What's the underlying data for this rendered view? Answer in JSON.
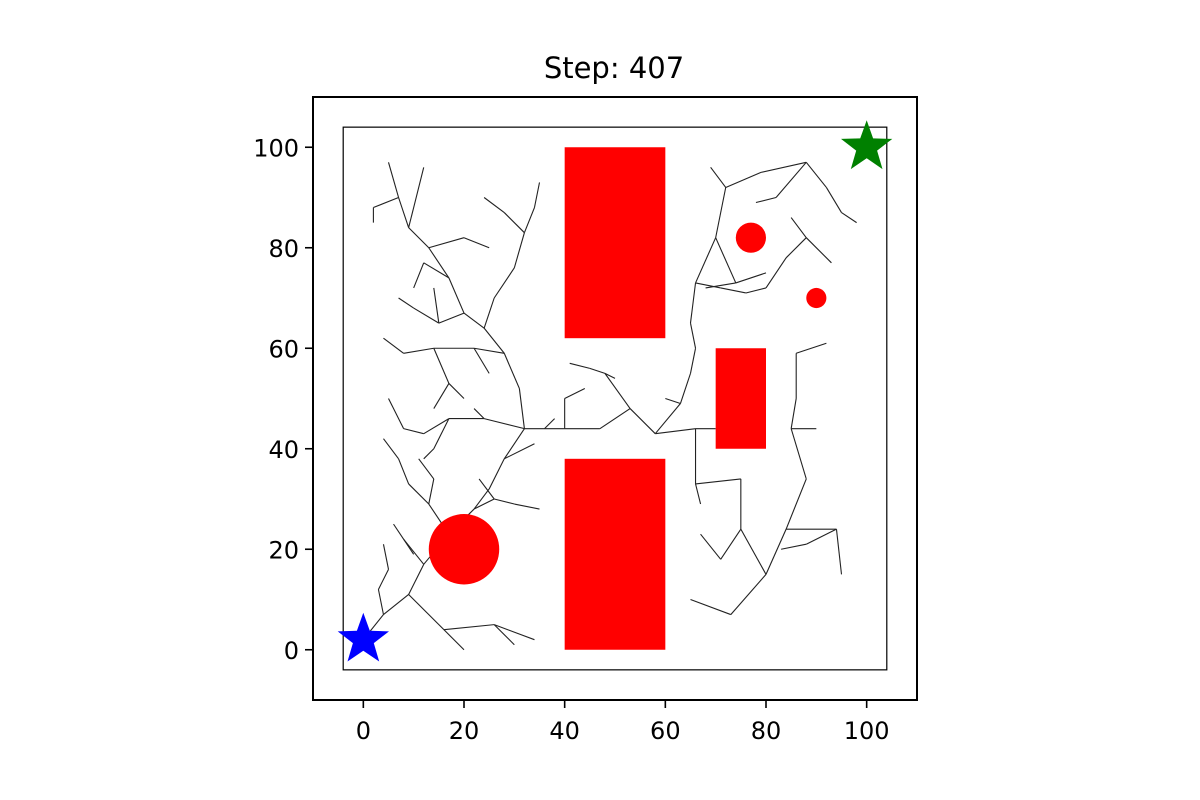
{
  "chart_data": {
    "type": "scatter",
    "title": "Step: 407",
    "xlim": [
      -10,
      110
    ],
    "ylim": [
      -10,
      110
    ],
    "xticks": [
      0,
      20,
      40,
      60,
      80,
      100
    ],
    "yticks": [
      0,
      20,
      40,
      60,
      80,
      100
    ],
    "boundary": {
      "x": [
        -4,
        104
      ],
      "y": [
        -4,
        104
      ]
    },
    "start": {
      "x": 0,
      "y": 2,
      "color": "#0000ff"
    },
    "goal": {
      "x": 100,
      "y": 100,
      "color": "#008000"
    },
    "obstacle_color": "#ff0000",
    "obstacles_rect": [
      {
        "x": 40,
        "y": 0,
        "w": 20,
        "h": 38
      },
      {
        "x": 40,
        "y": 62,
        "w": 20,
        "h": 38
      },
      {
        "x": 70,
        "y": 40,
        "w": 10,
        "h": 20
      }
    ],
    "obstacles_circle": [
      {
        "cx": 20,
        "cy": 20,
        "r": 7
      },
      {
        "cx": 77,
        "cy": 82,
        "r": 3
      },
      {
        "cx": 90,
        "cy": 70,
        "r": 2
      }
    ],
    "tree_color": "#222222",
    "tree_edges": [
      [
        [
          0,
          2
        ],
        [
          4,
          7
        ]
      ],
      [
        [
          4,
          7
        ],
        [
          9,
          11
        ]
      ],
      [
        [
          9,
          11
        ],
        [
          12,
          17
        ]
      ],
      [
        [
          12,
          17
        ],
        [
          17,
          23
        ]
      ],
      [
        [
          17,
          23
        ],
        [
          22,
          28
        ]
      ],
      [
        [
          22,
          28
        ],
        [
          25,
          32
        ]
      ],
      [
        [
          25,
          32
        ],
        [
          28,
          38
        ]
      ],
      [
        [
          28,
          38
        ],
        [
          32,
          44
        ]
      ],
      [
        [
          9,
          11
        ],
        [
          16,
          4
        ]
      ],
      [
        [
          16,
          4
        ],
        [
          26,
          5
        ]
      ],
      [
        [
          26,
          5
        ],
        [
          34,
          2
        ]
      ],
      [
        [
          16,
          4
        ],
        [
          20,
          0
        ]
      ],
      [
        [
          26,
          5
        ],
        [
          30,
          1
        ]
      ],
      [
        [
          4,
          7
        ],
        [
          3,
          12
        ]
      ],
      [
        [
          3,
          12
        ],
        [
          5,
          16
        ]
      ],
      [
        [
          5,
          16
        ],
        [
          4,
          21
        ]
      ],
      [
        [
          12,
          17
        ],
        [
          8,
          22
        ]
      ],
      [
        [
          8,
          22
        ],
        [
          6,
          25
        ]
      ],
      [
        [
          8,
          22
        ],
        [
          10,
          19
        ]
      ],
      [
        [
          17,
          23
        ],
        [
          13,
          29
        ]
      ],
      [
        [
          13,
          29
        ],
        [
          9,
          33
        ]
      ],
      [
        [
          9,
          33
        ],
        [
          7,
          38
        ]
      ],
      [
        [
          7,
          38
        ],
        [
          4,
          42
        ]
      ],
      [
        [
          13,
          29
        ],
        [
          14,
          34
        ]
      ],
      [
        [
          14,
          34
        ],
        [
          11,
          38
        ]
      ],
      [
        [
          22,
          28
        ],
        [
          26,
          30
        ]
      ],
      [
        [
          26,
          30
        ],
        [
          30,
          29
        ]
      ],
      [
        [
          30,
          29
        ],
        [
          35,
          28
        ]
      ],
      [
        [
          26,
          30
        ],
        [
          23,
          34
        ]
      ],
      [
        [
          28,
          38
        ],
        [
          34,
          41
        ]
      ],
      [
        [
          32,
          44
        ],
        [
          24,
          46
        ]
      ],
      [
        [
          24,
          46
        ],
        [
          17,
          46
        ]
      ],
      [
        [
          17,
          46
        ],
        [
          12,
          43
        ]
      ],
      [
        [
          12,
          43
        ],
        [
          8,
          44
        ]
      ],
      [
        [
          8,
          44
        ],
        [
          5,
          50
        ]
      ],
      [
        [
          17,
          46
        ],
        [
          14,
          40
        ]
      ],
      [
        [
          14,
          40
        ],
        [
          12,
          38
        ]
      ],
      [
        [
          24,
          46
        ],
        [
          22,
          48
        ]
      ],
      [
        [
          32,
          44
        ],
        [
          31,
          52
        ]
      ],
      [
        [
          31,
          52
        ],
        [
          28,
          59
        ]
      ],
      [
        [
          28,
          59
        ],
        [
          24,
          64
        ]
      ],
      [
        [
          24,
          64
        ],
        [
          20,
          67
        ]
      ],
      [
        [
          20,
          67
        ],
        [
          17,
          74
        ]
      ],
      [
        [
          17,
          74
        ],
        [
          13,
          80
        ]
      ],
      [
        [
          13,
          80
        ],
        [
          9,
          84
        ]
      ],
      [
        [
          9,
          84
        ],
        [
          7,
          90
        ]
      ],
      [
        [
          7,
          90
        ],
        [
          5,
          97
        ]
      ],
      [
        [
          9,
          84
        ],
        [
          12,
          96
        ]
      ],
      [
        [
          13,
          80
        ],
        [
          20,
          82
        ]
      ],
      [
        [
          20,
          82
        ],
        [
          25,
          80
        ]
      ],
      [
        [
          28,
          59
        ],
        [
          22,
          60
        ]
      ],
      [
        [
          22,
          60
        ],
        [
          14,
          60
        ]
      ],
      [
        [
          14,
          60
        ],
        [
          8,
          59
        ]
      ],
      [
        [
          8,
          59
        ],
        [
          4,
          62
        ]
      ],
      [
        [
          14,
          60
        ],
        [
          17,
          53
        ]
      ],
      [
        [
          17,
          53
        ],
        [
          20,
          50
        ]
      ],
      [
        [
          17,
          53
        ],
        [
          14,
          48
        ]
      ],
      [
        [
          22,
          60
        ],
        [
          25,
          55
        ]
      ],
      [
        [
          24,
          64
        ],
        [
          26,
          70
        ]
      ],
      [
        [
          26,
          70
        ],
        [
          30,
          76
        ]
      ],
      [
        [
          30,
          76
        ],
        [
          32,
          83
        ]
      ],
      [
        [
          32,
          83
        ],
        [
          34,
          88
        ]
      ],
      [
        [
          34,
          88
        ],
        [
          35,
          93
        ]
      ],
      [
        [
          32,
          83
        ],
        [
          28,
          87
        ]
      ],
      [
        [
          28,
          87
        ],
        [
          24,
          90
        ]
      ],
      [
        [
          20,
          67
        ],
        [
          15,
          65
        ]
      ],
      [
        [
          15,
          65
        ],
        [
          10,
          68
        ]
      ],
      [
        [
          10,
          68
        ],
        [
          7,
          70
        ]
      ],
      [
        [
          15,
          65
        ],
        [
          14,
          72
        ]
      ],
      [
        [
          7,
          90
        ],
        [
          2,
          88
        ]
      ],
      [
        [
          2,
          88
        ],
        [
          2,
          85
        ]
      ],
      [
        [
          17,
          74
        ],
        [
          12,
          77
        ]
      ],
      [
        [
          12,
          77
        ],
        [
          10,
          72
        ]
      ],
      [
        [
          32,
          44
        ],
        [
          36,
          44
        ]
      ],
      [
        [
          36,
          44
        ],
        [
          40,
          44
        ]
      ],
      [
        [
          40,
          44
        ],
        [
          47,
          44
        ]
      ],
      [
        [
          47,
          44
        ],
        [
          53,
          48
        ]
      ],
      [
        [
          53,
          48
        ],
        [
          58,
          43
        ]
      ],
      [
        [
          58,
          43
        ],
        [
          63,
          49
        ]
      ],
      [
        [
          63,
          49
        ],
        [
          65,
          55
        ]
      ],
      [
        [
          65,
          55
        ],
        [
          66,
          60
        ]
      ],
      [
        [
          66,
          60
        ],
        [
          65,
          65
        ]
      ],
      [
        [
          65,
          65
        ],
        [
          66,
          73
        ]
      ],
      [
        [
          66,
          73
        ],
        [
          70,
          82
        ]
      ],
      [
        [
          70,
          82
        ],
        [
          72,
          92
        ]
      ],
      [
        [
          72,
          92
        ],
        [
          79,
          95
        ]
      ],
      [
        [
          79,
          95
        ],
        [
          88,
          97
        ]
      ],
      [
        [
          88,
          97
        ],
        [
          92,
          92
        ]
      ],
      [
        [
          92,
          92
        ],
        [
          95,
          87
        ]
      ],
      [
        [
          95,
          87
        ],
        [
          98,
          85
        ]
      ],
      [
        [
          88,
          97
        ],
        [
          82,
          90
        ]
      ],
      [
        [
          82,
          90
        ],
        [
          78,
          89
        ]
      ],
      [
        [
          72,
          92
        ],
        [
          69,
          96
        ]
      ],
      [
        [
          70,
          82
        ],
        [
          74,
          73
        ]
      ],
      [
        [
          74,
          73
        ],
        [
          80,
          75
        ]
      ],
      [
        [
          74,
          73
        ],
        [
          68,
          72
        ]
      ],
      [
        [
          66,
          73
        ],
        [
          71,
          72
        ]
      ],
      [
        [
          71,
          72
        ],
        [
          76,
          71
        ]
      ],
      [
        [
          76,
          71
        ],
        [
          80,
          72
        ]
      ],
      [
        [
          80,
          72
        ],
        [
          84,
          78
        ]
      ],
      [
        [
          84,
          78
        ],
        [
          88,
          82
        ]
      ],
      [
        [
          88,
          82
        ],
        [
          93,
          77
        ]
      ],
      [
        [
          88,
          82
        ],
        [
          85,
          86
        ]
      ],
      [
        [
          58,
          43
        ],
        [
          66,
          44
        ]
      ],
      [
        [
          66,
          44
        ],
        [
          70,
          44
        ]
      ],
      [
        [
          63,
          49
        ],
        [
          60,
          50
        ]
      ],
      [
        [
          53,
          48
        ],
        [
          48,
          55
        ]
      ],
      [
        [
          48,
          55
        ],
        [
          45,
          56
        ]
      ],
      [
        [
          45,
          56
        ],
        [
          41,
          57
        ]
      ],
      [
        [
          48,
          55
        ],
        [
          50,
          54
        ]
      ],
      [
        [
          40,
          44
        ],
        [
          40,
          50
        ]
      ],
      [
        [
          40,
          50
        ],
        [
          44,
          52
        ]
      ],
      [
        [
          36,
          44
        ],
        [
          38,
          46
        ]
      ],
      [
        [
          66,
          44
        ],
        [
          66,
          33
        ]
      ],
      [
        [
          66,
          33
        ],
        [
          75,
          34
        ]
      ],
      [
        [
          75,
          34
        ],
        [
          75,
          24
        ]
      ],
      [
        [
          75,
          24
        ],
        [
          80,
          15
        ]
      ],
      [
        [
          80,
          15
        ],
        [
          84,
          24
        ]
      ],
      [
        [
          84,
          24
        ],
        [
          94,
          24
        ]
      ],
      [
        [
          94,
          24
        ],
        [
          95,
          15
        ]
      ],
      [
        [
          75,
          24
        ],
        [
          71,
          18
        ]
      ],
      [
        [
          71,
          18
        ],
        [
          67,
          23
        ]
      ],
      [
        [
          80,
          15
        ],
        [
          73,
          7
        ]
      ],
      [
        [
          73,
          7
        ],
        [
          65,
          10
        ]
      ],
      [
        [
          84,
          24
        ],
        [
          88,
          34
        ]
      ],
      [
        [
          88,
          34
        ],
        [
          85,
          44
        ]
      ],
      [
        [
          85,
          44
        ],
        [
          86,
          50
        ]
      ],
      [
        [
          86,
          50
        ],
        [
          86,
          59
        ]
      ],
      [
        [
          86,
          59
        ],
        [
          92,
          61
        ]
      ],
      [
        [
          94,
          24
        ],
        [
          88,
          21
        ]
      ],
      [
        [
          88,
          21
        ],
        [
          83,
          20
        ]
      ],
      [
        [
          66,
          33
        ],
        [
          67,
          29
        ]
      ],
      [
        [
          85,
          44
        ],
        [
          90,
          44
        ]
      ]
    ]
  }
}
